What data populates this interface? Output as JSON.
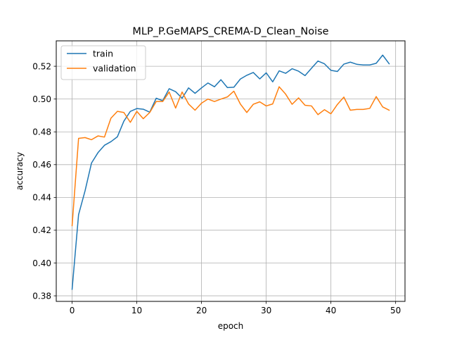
{
  "chart_data": {
    "type": "line",
    "title": "MLP_P.GeMAPS_CREMA-D_Clean_Noise",
    "xlabel": "epoch",
    "ylabel": "accuracy",
    "xlim": [
      -2.45,
      51.45
    ],
    "ylim": [
      0.3766,
      0.5355
    ],
    "xticks": [
      0,
      10,
      20,
      30,
      40,
      50
    ],
    "yticks": [
      0.38,
      0.4,
      0.42,
      0.44,
      0.46,
      0.48,
      0.5,
      0.52
    ],
    "grid": true,
    "legend_position": "upper-left",
    "x": [
      0,
      1,
      2,
      3,
      4,
      5,
      6,
      7,
      8,
      9,
      10,
      11,
      12,
      13,
      14,
      15,
      16,
      17,
      18,
      19,
      20,
      21,
      22,
      23,
      24,
      25,
      26,
      27,
      28,
      29,
      30,
      31,
      32,
      33,
      34,
      35,
      36,
      37,
      38,
      39,
      40,
      41,
      42,
      43,
      44,
      45,
      46,
      47,
      48,
      49
    ],
    "series": [
      {
        "name": "train",
        "color": "#1f77b4",
        "values": [
          0.384,
          0.4295,
          0.444,
          0.461,
          0.4673,
          0.4718,
          0.474,
          0.477,
          0.4865,
          0.4925,
          0.4942,
          0.4938,
          0.492,
          0.5005,
          0.499,
          0.5063,
          0.5045,
          0.5005,
          0.5068,
          0.5035,
          0.5068,
          0.5098,
          0.5075,
          0.5118,
          0.507,
          0.5072,
          0.5122,
          0.5145,
          0.5162,
          0.5123,
          0.516,
          0.5105,
          0.5172,
          0.5157,
          0.5185,
          0.517,
          0.5143,
          0.5188,
          0.5232,
          0.5215,
          0.5175,
          0.5168,
          0.5213,
          0.5225,
          0.5212,
          0.5208,
          0.5208,
          0.5218,
          0.5268,
          0.5215
        ]
      },
      {
        "name": "validation",
        "color": "#ff7f0e",
        "values": [
          0.4228,
          0.476,
          0.4765,
          0.4752,
          0.4775,
          0.4768,
          0.4883,
          0.4925,
          0.4918,
          0.4858,
          0.4925,
          0.488,
          0.4918,
          0.4985,
          0.4985,
          0.5043,
          0.4945,
          0.5043,
          0.497,
          0.4932,
          0.4975,
          0.5,
          0.4985,
          0.5,
          0.5013,
          0.5048,
          0.497,
          0.4918,
          0.4968,
          0.4983,
          0.4958,
          0.497,
          0.5075,
          0.503,
          0.4968,
          0.5007,
          0.4962,
          0.4958,
          0.4905,
          0.4935,
          0.491,
          0.4967,
          0.5012,
          0.4932,
          0.4937,
          0.4937,
          0.4943,
          0.5015,
          0.4952,
          0.4932
        ]
      }
    ]
  }
}
